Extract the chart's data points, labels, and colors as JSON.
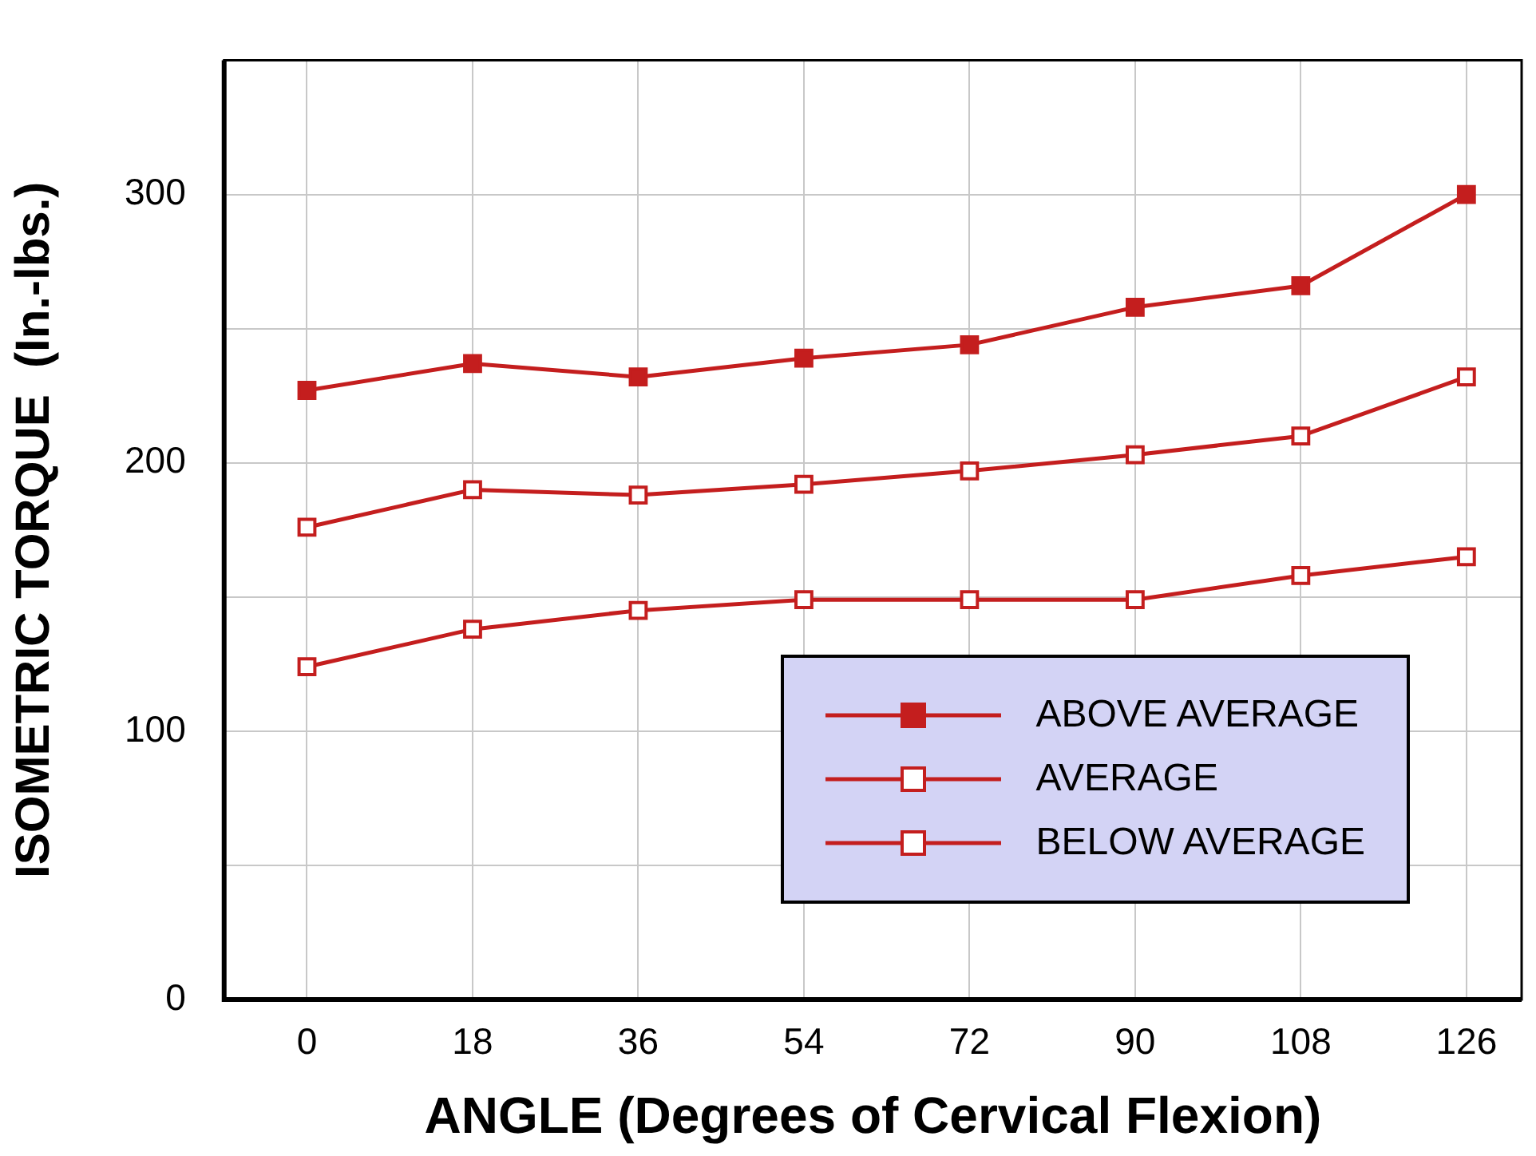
{
  "chart_data": {
    "type": "line",
    "xlabel": "ANGLE (Degrees of Cervical Flexion)",
    "ylabel": "ISOMETRIC TORQUE  (In.-lbs.)",
    "x": [
      0,
      18,
      36,
      54,
      72,
      90,
      108,
      126
    ],
    "series": [
      {
        "name": "ABOVE AVERAGE",
        "color": "#c41e1e",
        "values": [
          227,
          237,
          232,
          239,
          244,
          258,
          266,
          300
        ]
      },
      {
        "name": "AVERAGE",
        "color": "#c41e1e",
        "values": [
          176,
          190,
          188,
          192,
          197,
          203,
          210,
          232
        ]
      },
      {
        "name": "BELOW AVERAGE",
        "color": "#c41e1e",
        "values": [
          124,
          138,
          145,
          149,
          149,
          149,
          158,
          165
        ]
      }
    ],
    "xlim": [
      -9,
      132
    ],
    "xticks": [
      0,
      18,
      36,
      54,
      72,
      90,
      108,
      126
    ],
    "ylim": [
      0,
      350
    ],
    "yticks": [
      0,
      {
        "value": 50,
        "label": null
      },
      100,
      {
        "value": 150,
        "label": null
      },
      200,
      {
        "value": 250,
        "label": null
      },
      300
    ],
    "grid": true,
    "legend": "bottom right",
    "marker": "square",
    "line_style": "solid"
  }
}
